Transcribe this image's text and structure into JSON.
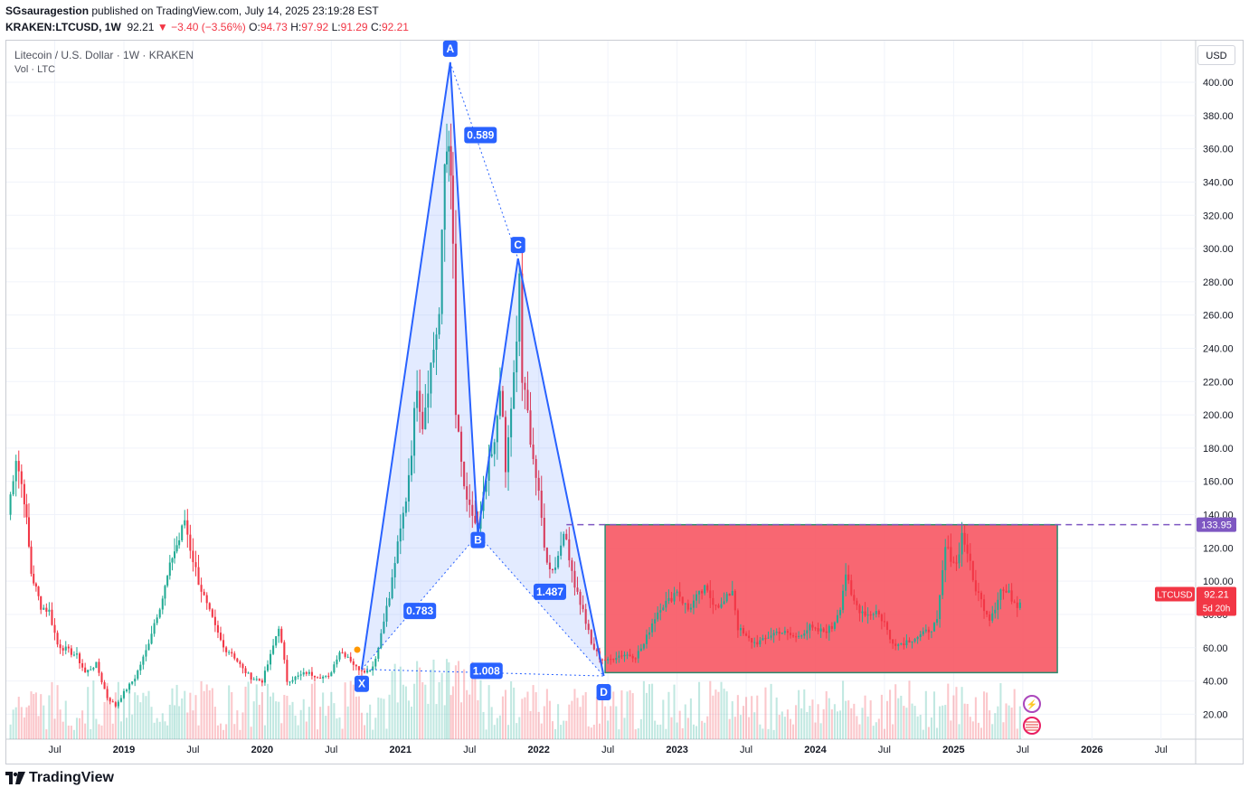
{
  "header": {
    "author": "SGsauragestion",
    "published_text": "published on TradingView.com, July 14, 2025 23:19:28 EST",
    "symbol": "KRAKEN:LTCUSD, 1W",
    "last": "92.21",
    "change": "−3.40 (−3.56%)",
    "o_label": "O:",
    "o": "94.73",
    "h_label": "H:",
    "h": "97.92",
    "l_label": "L:",
    "l": "91.29",
    "c_label": "C:",
    "c": "92.21"
  },
  "legend": {
    "title": "Litecoin / U.S. Dollar · 1W · KRAKEN",
    "volume": "Vol · LTC"
  },
  "currency_button": "USD",
  "price_tags": {
    "level_value": "133.95",
    "symbol_label": "LTCUSD",
    "last_value": "92.21",
    "countdown": "5d 20h"
  },
  "pattern": {
    "point_labels": [
      "X",
      "A",
      "B",
      "C",
      "D"
    ],
    "ratios": [
      "0.589",
      "0.783",
      "1.487",
      "1.008"
    ]
  },
  "colors": {
    "up": "#22ab94",
    "down": "#f23645",
    "pattern": "#2962ff",
    "zone": "#f7525f",
    "level": "#7e57c2"
  },
  "footer": {
    "logo_icon": "tradingview-logo-icon",
    "brand": "TradingView"
  },
  "chart_data": {
    "type": "candlestick",
    "timeframe": "1W",
    "y_ticks": [
      "20.00",
      "40.00",
      "60.00",
      "80.00",
      "100.00",
      "120.00",
      "140.00",
      "160.00",
      "180.00",
      "200.00",
      "220.00",
      "240.00",
      "260.00",
      "280.00",
      "300.00",
      "320.00",
      "340.00",
      "360.00",
      "380.00",
      "400.00"
    ],
    "ylim": [
      5,
      425
    ],
    "x_ticks": [
      "Jul",
      "2019",
      "Jul",
      "2020",
      "Jul",
      "2021",
      "Jul",
      "2022",
      "Jul",
      "2023",
      "Jul",
      "2024",
      "Jul",
      "2025",
      "Jul",
      "2026",
      "Jul"
    ],
    "x_tick_dates": [
      2018.5,
      2019.0,
      2019.5,
      2020.0,
      2020.5,
      2021.0,
      2021.5,
      2022.0,
      2022.5,
      2023.0,
      2023.5,
      2024.0,
      2024.5,
      2025.0,
      2025.5,
      2026.0,
      2026.5
    ],
    "xlim": [
      2018.15,
      2026.75
    ],
    "price_path": [
      [
        2018.16,
        140
      ],
      [
        2018.22,
        175
      ],
      [
        2018.28,
        150
      ],
      [
        2018.33,
        105
      ],
      [
        2018.4,
        85
      ],
      [
        2018.46,
        82
      ],
      [
        2018.52,
        62
      ],
      [
        2018.6,
        58
      ],
      [
        2018.66,
        55
      ],
      [
        2018.72,
        45
      ],
      [
        2018.8,
        50
      ],
      [
        2018.88,
        30
      ],
      [
        2018.94,
        25
      ],
      [
        2019.0,
        33
      ],
      [
        2019.08,
        42
      ],
      [
        2019.16,
        58
      ],
      [
        2019.22,
        75
      ],
      [
        2019.28,
        90
      ],
      [
        2019.35,
        115
      ],
      [
        2019.4,
        125
      ],
      [
        2019.44,
        137
      ],
      [
        2019.48,
        120
      ],
      [
        2019.54,
        100
      ],
      [
        2019.6,
        85
      ],
      [
        2019.66,
        72
      ],
      [
        2019.72,
        60
      ],
      [
        2019.78,
        57
      ],
      [
        2019.86,
        47
      ],
      [
        2019.92,
        42
      ],
      [
        2020.0,
        40
      ],
      [
        2020.06,
        55
      ],
      [
        2020.12,
        73
      ],
      [
        2020.18,
        40
      ],
      [
        2020.24,
        42
      ],
      [
        2020.32,
        45
      ],
      [
        2020.4,
        43
      ],
      [
        2020.48,
        42
      ],
      [
        2020.56,
        58
      ],
      [
        2020.62,
        55
      ],
      [
        2020.68,
        48
      ],
      [
        2020.72,
        47
      ],
      [
        2020.76,
        46
      ],
      [
        2020.8,
        49
      ],
      [
        2020.84,
        60
      ],
      [
        2020.88,
        78
      ],
      [
        2020.92,
        90
      ],
      [
        2020.96,
        112
      ],
      [
        2021.0,
        130
      ],
      [
        2021.04,
        150
      ],
      [
        2021.08,
        180
      ],
      [
        2021.12,
        220
      ],
      [
        2021.16,
        195
      ],
      [
        2021.22,
        230
      ],
      [
        2021.28,
        260
      ],
      [
        2021.32,
        350
      ],
      [
        2021.35,
        370
      ],
      [
        2021.38,
        300
      ],
      [
        2021.4,
        200
      ],
      [
        2021.44,
        170
      ],
      [
        2021.48,
        145
      ],
      [
        2021.52,
        140
      ],
      [
        2021.56,
        130
      ],
      [
        2021.6,
        150
      ],
      [
        2021.64,
        170
      ],
      [
        2021.68,
        180
      ],
      [
        2021.72,
        220
      ],
      [
        2021.76,
        165
      ],
      [
        2021.8,
        205
      ],
      [
        2021.84,
        240
      ],
      [
        2021.86,
        285
      ],
      [
        2021.88,
        220
      ],
      [
        2021.92,
        200
      ],
      [
        2022.0,
        150
      ],
      [
        2022.06,
        110
      ],
      [
        2022.12,
        108
      ],
      [
        2022.16,
        125
      ],
      [
        2022.2,
        125
      ],
      [
        2022.26,
        98
      ],
      [
        2022.32,
        82
      ],
      [
        2022.38,
        62
      ],
      [
        2022.44,
        54
      ],
      [
        2022.5,
        52
      ],
      [
        2022.56,
        55
      ],
      [
        2022.62,
        56
      ],
      [
        2022.7,
        55
      ],
      [
        2022.76,
        62
      ],
      [
        2022.82,
        75
      ],
      [
        2022.88,
        85
      ],
      [
        2022.94,
        88
      ],
      [
        2023.0,
        95
      ],
      [
        2023.04,
        88
      ],
      [
        2023.08,
        83
      ],
      [
        2023.14,
        90
      ],
      [
        2023.2,
        95
      ],
      [
        2023.26,
        88
      ],
      [
        2023.32,
        85
      ],
      [
        2023.4,
        95
      ],
      [
        2023.44,
        72
      ],
      [
        2023.5,
        66
      ],
      [
        2023.56,
        63
      ],
      [
        2023.62,
        64
      ],
      [
        2023.68,
        68
      ],
      [
        2023.74,
        70
      ],
      [
        2023.8,
        68
      ],
      [
        2023.86,
        66
      ],
      [
        2023.9,
        69
      ],
      [
        2023.96,
        72
      ],
      [
        2024.0,
        70
      ],
      [
        2024.06,
        70
      ],
      [
        2024.12,
        72
      ],
      [
        2024.18,
        85
      ],
      [
        2024.22,
        105
      ],
      [
        2024.26,
        90
      ],
      [
        2024.32,
        83
      ],
      [
        2024.38,
        80
      ],
      [
        2024.44,
        82
      ],
      [
        2024.5,
        75
      ],
      [
        2024.54,
        65
      ],
      [
        2024.6,
        62
      ],
      [
        2024.66,
        64
      ],
      [
        2024.72,
        66
      ],
      [
        2024.78,
        68
      ],
      [
        2024.84,
        72
      ],
      [
        2024.88,
        75
      ],
      [
        2024.92,
        105
      ],
      [
        2024.94,
        120
      ],
      [
        2024.98,
        115
      ],
      [
        2025.02,
        110
      ],
      [
        2025.06,
        128
      ],
      [
        2025.1,
        118
      ],
      [
        2025.14,
        100
      ],
      [
        2025.2,
        88
      ],
      [
        2025.26,
        78
      ],
      [
        2025.3,
        85
      ],
      [
        2025.34,
        95
      ],
      [
        2025.4,
        92
      ],
      [
        2025.46,
        86
      ],
      [
        2025.5,
        92
      ]
    ],
    "pattern_points": {
      "X": [
        2020.72,
        47
      ],
      "A": [
        2021.36,
        412
      ],
      "B": [
        2021.56,
        128
      ],
      "C": [
        2021.85,
        294
      ],
      "D": [
        2022.47,
        43
      ]
    },
    "zone": {
      "x0": 2022.48,
      "x1": 2025.75,
      "y0": 45,
      "y1": 133.95
    },
    "level": 133.95,
    "last_price": 92.21
  }
}
